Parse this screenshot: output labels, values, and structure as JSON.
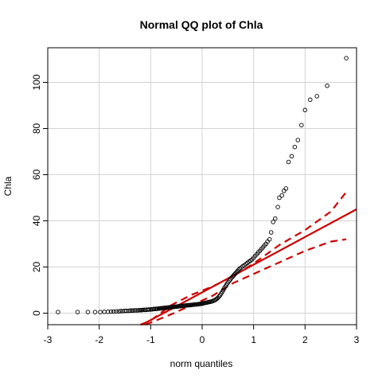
{
  "chart_data": {
    "type": "scatter",
    "title": "Normal QQ plot of  Chla",
    "xlabel": "norm quantiles",
    "ylabel": "Chla",
    "xlim": [
      -3.0,
      3.0
    ],
    "ylim": [
      -5,
      115
    ],
    "x_ticks": [
      -3,
      -2,
      -1,
      0,
      1,
      2,
      3
    ],
    "y_ticks": [
      0,
      20,
      40,
      60,
      80,
      100
    ],
    "grid": true,
    "point_style": "open-circle",
    "colors": {
      "points": "#000000",
      "reference": "#cc0000",
      "grid": "#d3d3d3"
    },
    "points": [
      [
        -2.8,
        0.5
      ],
      [
        -2.42,
        0.5
      ],
      [
        -2.22,
        0.5
      ],
      [
        -2.08,
        0.5
      ],
      [
        -1.98,
        0.5
      ],
      [
        -1.9,
        0.6
      ],
      [
        -1.83,
        0.6
      ],
      [
        -1.77,
        0.7
      ],
      [
        -1.72,
        0.7
      ],
      [
        -1.67,
        0.8
      ],
      [
        -1.62,
        0.8
      ],
      [
        -1.58,
        0.9
      ],
      [
        -1.54,
        0.9
      ],
      [
        -1.5,
        1.0
      ],
      [
        -1.47,
        1.0
      ],
      [
        -1.43,
        1.0
      ],
      [
        -1.4,
        1.1
      ],
      [
        -1.37,
        1.1
      ],
      [
        -1.34,
        1.1
      ],
      [
        -1.31,
        1.2
      ],
      [
        -1.28,
        1.2
      ],
      [
        -1.25,
        1.2
      ],
      [
        -1.22,
        1.3
      ],
      [
        -1.2,
        1.3
      ],
      [
        -1.17,
        1.3
      ],
      [
        -1.15,
        1.4
      ],
      [
        -1.12,
        1.4
      ],
      [
        -1.1,
        1.4
      ],
      [
        -1.07,
        1.5
      ],
      [
        -1.05,
        1.5
      ],
      [
        -1.03,
        1.6
      ],
      [
        -1.0,
        1.6
      ],
      [
        -0.98,
        1.7
      ],
      [
        -0.96,
        1.7
      ],
      [
        -0.94,
        1.8
      ],
      [
        -0.91,
        1.8
      ],
      [
        -0.89,
        1.9
      ],
      [
        -0.87,
        1.9
      ],
      [
        -0.85,
        2.0
      ],
      [
        -0.83,
        2.0
      ],
      [
        -0.81,
        2.1
      ],
      [
        -0.79,
        2.1
      ],
      [
        -0.77,
        2.2
      ],
      [
        -0.75,
        2.2
      ],
      [
        -0.73,
        2.3
      ],
      [
        -0.71,
        2.3
      ],
      [
        -0.69,
        2.4
      ],
      [
        -0.67,
        2.4
      ],
      [
        -0.65,
        2.5
      ],
      [
        -0.63,
        2.5
      ],
      [
        -0.61,
        2.6
      ],
      [
        -0.59,
        2.6
      ],
      [
        -0.57,
        2.7
      ],
      [
        -0.55,
        2.7
      ],
      [
        -0.53,
        2.8
      ],
      [
        -0.51,
        2.8
      ],
      [
        -0.49,
        2.9
      ],
      [
        -0.47,
        2.9
      ],
      [
        -0.45,
        3.0
      ],
      [
        -0.43,
        3.0
      ],
      [
        -0.41,
        3.1
      ],
      [
        -0.39,
        3.1
      ],
      [
        -0.37,
        3.2
      ],
      [
        -0.35,
        3.2
      ],
      [
        -0.33,
        3.3
      ],
      [
        -0.31,
        3.3
      ],
      [
        -0.29,
        3.4
      ],
      [
        -0.27,
        3.4
      ],
      [
        -0.25,
        3.5
      ],
      [
        -0.23,
        3.5
      ],
      [
        -0.21,
        3.6
      ],
      [
        -0.19,
        3.6
      ],
      [
        -0.17,
        3.7
      ],
      [
        -0.15,
        3.7
      ],
      [
        -0.13,
        3.8
      ],
      [
        -0.11,
        3.8
      ],
      [
        -0.09,
        3.9
      ],
      [
        -0.07,
        3.9
      ],
      [
        -0.05,
        4.0
      ],
      [
        -0.03,
        4.0
      ],
      [
        -0.01,
        4.1
      ],
      [
        0.01,
        4.2
      ],
      [
        0.03,
        4.3
      ],
      [
        0.05,
        4.4
      ],
      [
        0.07,
        4.5
      ],
      [
        0.09,
        4.6
      ],
      [
        0.11,
        4.7
      ],
      [
        0.13,
        4.8
      ],
      [
        0.15,
        4.9
      ],
      [
        0.17,
        5.0
      ],
      [
        0.19,
        5.1
      ],
      [
        0.21,
        5.3
      ],
      [
        0.23,
        5.5
      ],
      [
        0.25,
        5.7
      ],
      [
        0.27,
        6.0
      ],
      [
        0.29,
        6.3
      ],
      [
        0.31,
        6.7
      ],
      [
        0.33,
        7.2
      ],
      [
        0.35,
        7.8
      ],
      [
        0.37,
        8.5
      ],
      [
        0.39,
        9.2
      ],
      [
        0.41,
        10.0
      ],
      [
        0.43,
        10.8
      ],
      [
        0.45,
        11.5
      ],
      [
        0.47,
        12.2
      ],
      [
        0.49,
        12.9
      ],
      [
        0.51,
        13.5
      ],
      [
        0.53,
        14.1
      ],
      [
        0.55,
        14.7
      ],
      [
        0.57,
        15.3
      ],
      [
        0.59,
        15.8
      ],
      [
        0.61,
        16.3
      ],
      [
        0.63,
        16.8
      ],
      [
        0.65,
        17.3
      ],
      [
        0.67,
        17.8
      ],
      [
        0.69,
        18.3
      ],
      [
        0.71,
        18.8
      ],
      [
        0.73,
        19.3
      ],
      [
        0.76,
        19.8
      ],
      [
        0.79,
        20.3
      ],
      [
        0.82,
        20.8
      ],
      [
        0.85,
        21.3
      ],
      [
        0.88,
        21.8
      ],
      [
        0.91,
        22.3
      ],
      [
        0.94,
        22.8
      ],
      [
        0.97,
        23.3
      ],
      [
        1.0,
        24.0
      ],
      [
        1.03,
        24.8
      ],
      [
        1.06,
        25.5
      ],
      [
        1.09,
        26.3
      ],
      [
        1.12,
        27.0
      ],
      [
        1.15,
        27.8
      ],
      [
        1.18,
        28.5
      ],
      [
        1.21,
        29.3
      ],
      [
        1.24,
        30.0
      ],
      [
        1.27,
        31.0
      ],
      [
        1.31,
        32.0
      ],
      [
        1.34,
        35.0
      ],
      [
        1.38,
        39.5
      ],
      [
        1.42,
        41.0
      ],
      [
        1.47,
        46.0
      ],
      [
        1.5,
        50.0
      ],
      [
        1.55,
        51.0
      ],
      [
        1.59,
        53.0
      ],
      [
        1.63,
        54.0
      ],
      [
        1.68,
        65.5
      ],
      [
        1.74,
        68.0
      ],
      [
        1.8,
        72.0
      ],
      [
        1.86,
        75.0
      ],
      [
        1.93,
        81.5
      ],
      [
        2.0,
        88.0
      ],
      [
        2.1,
        92.5
      ],
      [
        2.23,
        94.0
      ],
      [
        2.43,
        98.5
      ],
      [
        2.8,
        110.5
      ]
    ],
    "reference_line": {
      "intercept": 9.0,
      "slope": 12.0
    },
    "envelope_upper": [
      [
        -1.2,
        -5.0
      ],
      [
        -1.0,
        -3.2
      ],
      [
        -0.6,
        3.5
      ],
      [
        -0.2,
        8.0
      ],
      [
        0.2,
        11.5
      ],
      [
        0.6,
        16.0
      ],
      [
        1.0,
        21.5
      ],
      [
        1.5,
        29.5
      ],
      [
        2.0,
        36.0
      ],
      [
        2.5,
        44.0
      ],
      [
        2.8,
        52.5
      ]
    ],
    "envelope_lower": [
      [
        -1.1,
        -5.0
      ],
      [
        -0.6,
        -0.5
      ],
      [
        -0.2,
        3.5
      ],
      [
        0.2,
        7.5
      ],
      [
        0.6,
        13.0
      ],
      [
        1.0,
        17.0
      ],
      [
        1.5,
        22.0
      ],
      [
        2.0,
        27.0
      ],
      [
        2.5,
        31.0
      ],
      [
        2.8,
        32.0
      ]
    ]
  }
}
